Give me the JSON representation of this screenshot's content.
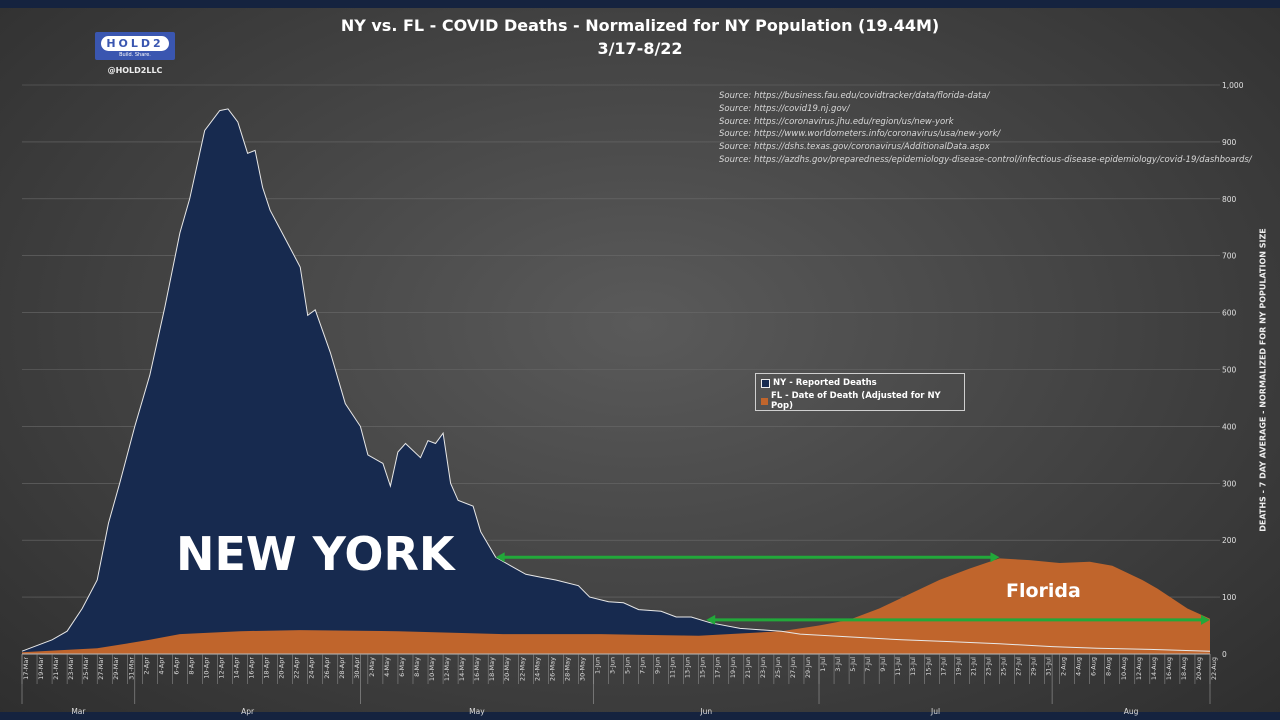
{
  "header": {
    "title_line1": "NY vs. FL - COVID Deaths - Normalized for NY Population (19.44M)",
    "title_line2": "3/17-8/22",
    "logo_text": "HOLD2",
    "logo_subtext": "Build. Share.",
    "handle": "@HOLD2LLC"
  },
  "sources": [
    "Source: https://business.fau.edu/covidtracker/data/florida-data/",
    "Source: https://covid19.nj.gov/",
    "Source: https://coronavirus.jhu.edu/region/us/new-york",
    "Source: https://www.worldometers.info/coronavirus/usa/new-york/",
    "Source: https://dshs.texas.gov/coronavirus/AdditionalData.aspx",
    "Source: https://azdhs.gov/preparedness/epidemiology-disease-control/infectious-disease-epidemiology/covid-19/dashboards/"
  ],
  "chart_data": {
    "type": "area",
    "title": "NY vs. FL - COVID Deaths - Normalized for NY Population (19.44M)",
    "subtitle": "3/17-8/22",
    "ylabel": "DEATHS - 7 DAY AVERAGE - NORMALIZED FOR NY POPULATION SIZE",
    "ylim": [
      0,
      1000
    ],
    "y_ticks": [
      "0",
      "100",
      "200",
      "300",
      "400",
      "500",
      "600",
      "700",
      "800",
      "900",
      "1,000"
    ],
    "x_unit": "days since 17-Mar",
    "xlim": [
      0,
      158
    ],
    "grid": true,
    "legend_placement": "center-right",
    "x_tick_labels": [
      "17-Mar",
      "19-Mar",
      "21-Mar",
      "23-Mar",
      "25-Mar",
      "27-Mar",
      "29-Mar",
      "31-Mar",
      "2-Apr",
      "4-Apr",
      "6-Apr",
      "8-Apr",
      "10-Apr",
      "12-Apr",
      "14-Apr",
      "16-Apr",
      "18-Apr",
      "20-Apr",
      "22-Apr",
      "24-Apr",
      "26-Apr",
      "28-Apr",
      "30-Apr",
      "2-May",
      "4-May",
      "6-May",
      "8-May",
      "10-May",
      "12-May",
      "14-May",
      "16-May",
      "18-May",
      "20-May",
      "22-May",
      "24-May",
      "26-May",
      "28-May",
      "30-May",
      "1-Jun",
      "3-Jun",
      "5-Jun",
      "7-Jun",
      "9-Jun",
      "11-Jun",
      "13-Jun",
      "15-Jun",
      "17-Jun",
      "19-Jun",
      "21-Jun",
      "23-Jun",
      "25-Jun",
      "27-Jun",
      "29-Jun",
      "1-Jul",
      "3-Jul",
      "5-Jul",
      "7-Jul",
      "9-Jul",
      "11-Jul",
      "13-Jul",
      "15-Jul",
      "17-Jul",
      "19-Jul",
      "21-Jul",
      "23-Jul",
      "25-Jul",
      "27-Jul",
      "29-Jul",
      "31-Jul",
      "2-Aug",
      "4-Aug",
      "6-Aug",
      "8-Aug",
      "10-Aug",
      "12-Aug",
      "14-Aug",
      "16-Aug",
      "18-Aug",
      "20-Aug",
      "22-Aug"
    ],
    "months": [
      {
        "label": "Mar",
        "start": 0,
        "end": 15
      },
      {
        "label": "Apr",
        "start": 15,
        "end": 45
      },
      {
        "label": "May",
        "start": 45,
        "end": 76
      },
      {
        "label": "Jun",
        "start": 76,
        "end": 106
      },
      {
        "label": "Jul",
        "start": 106,
        "end": 137
      },
      {
        "label": "Aug",
        "start": 137,
        "end": 158
      }
    ],
    "series": [
      {
        "name": "NY - Reported Deaths",
        "color": "#172a4f",
        "line": "#e8e8e8",
        "points": [
          [
            0,
            5
          ],
          [
            4,
            25
          ],
          [
            6,
            40
          ],
          [
            8,
            80
          ],
          [
            10,
            130
          ],
          [
            11.5,
            230
          ],
          [
            13,
            300
          ],
          [
            15,
            400
          ],
          [
            17,
            490
          ],
          [
            19,
            610
          ],
          [
            21,
            740
          ],
          [
            22.3,
            800
          ],
          [
            24.3,
            920
          ],
          [
            26.3,
            955
          ],
          [
            27.4,
            958
          ],
          [
            28.7,
            935
          ],
          [
            30,
            880
          ],
          [
            31,
            885
          ],
          [
            32,
            820
          ],
          [
            33,
            780
          ],
          [
            35,
            730
          ],
          [
            37,
            680
          ],
          [
            38,
            595
          ],
          [
            39,
            605
          ],
          [
            41,
            530
          ],
          [
            43,
            440
          ],
          [
            45,
            400
          ],
          [
            46,
            350
          ],
          [
            48,
            335
          ],
          [
            49,
            295
          ],
          [
            50,
            355
          ],
          [
            51,
            370
          ],
          [
            53,
            345
          ],
          [
            54,
            375
          ],
          [
            55,
            370
          ],
          [
            56,
            388
          ],
          [
            57,
            300
          ],
          [
            58,
            270
          ],
          [
            60,
            260
          ],
          [
            61,
            215
          ],
          [
            63,
            170
          ],
          [
            65,
            155
          ],
          [
            67,
            140
          ],
          [
            69,
            135
          ],
          [
            71,
            130
          ],
          [
            74,
            120
          ],
          [
            75.5,
            100
          ],
          [
            78,
            92
          ],
          [
            80,
            90
          ],
          [
            82,
            78
          ],
          [
            85,
            75
          ],
          [
            87,
            65
          ],
          [
            89,
            65
          ],
          [
            91.5,
            55
          ],
          [
            95.5,
            45
          ],
          [
            101,
            40
          ],
          [
            103.5,
            35
          ],
          [
            110,
            30
          ],
          [
            117,
            25
          ],
          [
            123,
            22
          ],
          [
            130,
            18
          ],
          [
            137,
            13
          ],
          [
            143,
            10
          ],
          [
            150,
            8
          ],
          [
            158,
            5
          ]
        ]
      },
      {
        "name": "FL - Date of Death (Adjusted for NY Pop)",
        "color": "#c0652c",
        "points": [
          [
            0,
            3
          ],
          [
            10,
            10
          ],
          [
            17,
            25
          ],
          [
            21,
            35
          ],
          [
            29,
            40
          ],
          [
            37,
            42
          ],
          [
            50,
            40
          ],
          [
            64,
            35
          ],
          [
            77,
            35
          ],
          [
            90,
            32
          ],
          [
            101,
            40
          ],
          [
            106,
            50
          ],
          [
            110,
            60
          ],
          [
            114,
            80
          ],
          [
            118,
            105
          ],
          [
            122,
            130
          ],
          [
            126,
            150
          ],
          [
            130,
            168
          ],
          [
            134,
            165
          ],
          [
            138,
            160
          ],
          [
            142,
            162
          ],
          [
            145,
            155
          ],
          [
            149,
            130
          ],
          [
            151,
            115
          ],
          [
            155,
            80
          ],
          [
            158,
            62
          ]
        ]
      }
    ],
    "annotations": [
      {
        "text": "NEW YORK",
        "series": "NY - Reported Deaths"
      },
      {
        "text": "Florida",
        "series": "FL - Date of Death (Adjusted for NY Pop)"
      }
    ],
    "arrows": [
      {
        "from_day": 63,
        "to_day": 130,
        "value": 170,
        "color": "#22a83a"
      },
      {
        "from_day": 91,
        "to_day": 158,
        "value": 60,
        "color": "#22a83a"
      }
    ]
  }
}
